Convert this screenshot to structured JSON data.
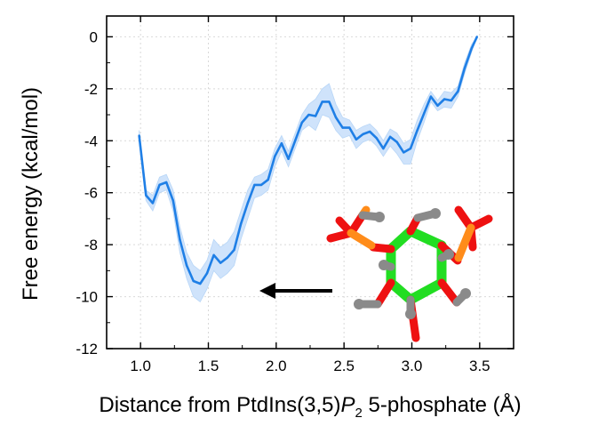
{
  "chart_data": {
    "type": "line",
    "title": "",
    "xlabel": {
      "prefix": "Distance from PtdIns(3,5)",
      "italic": "P",
      "subscript": "2",
      "suffix": " 5-phosphate (Å)"
    },
    "ylabel": "Free energy (kcal/mol)",
    "xlim": [
      0.75,
      3.75
    ],
    "ylim": [
      -12,
      0.8
    ],
    "xticks": [
      1.0,
      1.5,
      2.0,
      2.5,
      3.0,
      3.5
    ],
    "xtick_labels": [
      "1.0",
      "1.5",
      "2.0",
      "2.5",
      "3.0",
      "3.5"
    ],
    "yticks": [
      0,
      -2,
      -4,
      -6,
      -8,
      -10,
      -12
    ],
    "ytick_labels": [
      "0",
      "-2",
      "-4",
      "-6",
      "-8",
      "-10",
      "-12"
    ],
    "grid": true,
    "line_color": "#1f7fe6",
    "band_color": "#cfe3fb",
    "x": [
      0.99,
      1.04,
      1.09,
      1.14,
      1.19,
      1.24,
      1.29,
      1.34,
      1.39,
      1.44,
      1.49,
      1.54,
      1.59,
      1.64,
      1.69,
      1.74,
      1.79,
      1.84,
      1.89,
      1.94,
      1.99,
      2.04,
      2.09,
      2.14,
      2.19,
      2.24,
      2.29,
      2.34,
      2.39,
      2.44,
      2.49,
      2.54,
      2.59,
      2.64,
      2.69,
      2.74,
      2.79,
      2.84,
      2.89,
      2.94,
      2.99,
      3.04,
      3.09,
      3.14,
      3.19,
      3.24,
      3.29,
      3.34,
      3.39,
      3.44,
      3.48
    ],
    "y": [
      -3.8,
      -6.1,
      -6.4,
      -5.7,
      -5.6,
      -6.3,
      -7.8,
      -8.8,
      -9.4,
      -9.5,
      -9.1,
      -8.4,
      -8.7,
      -8.5,
      -8.2,
      -7.2,
      -6.4,
      -5.7,
      -5.7,
      -5.5,
      -4.6,
      -4.1,
      -4.7,
      -4.0,
      -3.3,
      -3.0,
      -3.05,
      -2.5,
      -2.5,
      -3.1,
      -3.5,
      -3.5,
      -3.95,
      -3.75,
      -3.65,
      -3.9,
      -4.3,
      -3.85,
      -4.05,
      -4.45,
      -4.3,
      -3.6,
      -2.95,
      -2.3,
      -2.65,
      -2.4,
      -2.45,
      -2.1,
      -1.2,
      -0.45,
      0.0
    ],
    "y_upper": [
      -3.6,
      -5.9,
      -6.1,
      -5.4,
      -5.3,
      -5.9,
      -7.3,
      -8.3,
      -8.8,
      -9.0,
      -8.6,
      -7.8,
      -8.1,
      -7.9,
      -7.5,
      -6.7,
      -5.9,
      -5.4,
      -5.3,
      -5.1,
      -4.3,
      -3.8,
      -4.4,
      -3.7,
      -3.0,
      -2.6,
      -2.4,
      -2.0,
      -1.8,
      -2.6,
      -3.1,
      -3.2,
      -3.6,
      -3.45,
      -3.35,
      -3.6,
      -4.0,
      -3.55,
      -3.7,
      -4.1,
      -3.95,
      -3.2,
      -2.6,
      -2.1,
      -2.45,
      -2.1,
      -2.15,
      -1.9,
      -1.0,
      -0.3,
      0.0
    ],
    "y_lower": [
      -4.0,
      -6.3,
      -6.7,
      -6.0,
      -5.9,
      -6.7,
      -8.3,
      -9.3,
      -10.0,
      -10.2,
      -9.7,
      -9.0,
      -9.3,
      -9.1,
      -8.8,
      -7.8,
      -7.0,
      -6.2,
      -6.1,
      -5.9,
      -5.0,
      -4.4,
      -5.0,
      -4.3,
      -3.6,
      -3.4,
      -3.6,
      -3.0,
      -3.1,
      -3.6,
      -3.9,
      -3.8,
      -4.3,
      -4.05,
      -3.95,
      -4.2,
      -4.6,
      -4.2,
      -4.5,
      -4.9,
      -4.9,
      -4.0,
      -3.3,
      -2.5,
      -2.85,
      -2.7,
      -2.75,
      -2.3,
      -1.4,
      -0.6,
      0.0
    ],
    "annotation": {
      "type": "arrow",
      "direction": "left",
      "color": "#000000"
    },
    "inset": {
      "type": "molecule",
      "description_icon": "molecule-stick-model-icon",
      "colors": {
        "carbon": "#22dd22",
        "oxygen": "#ee1111",
        "phosphorus": "#ff8c1a",
        "hydrogen": "#8a8a8a"
      }
    }
  }
}
